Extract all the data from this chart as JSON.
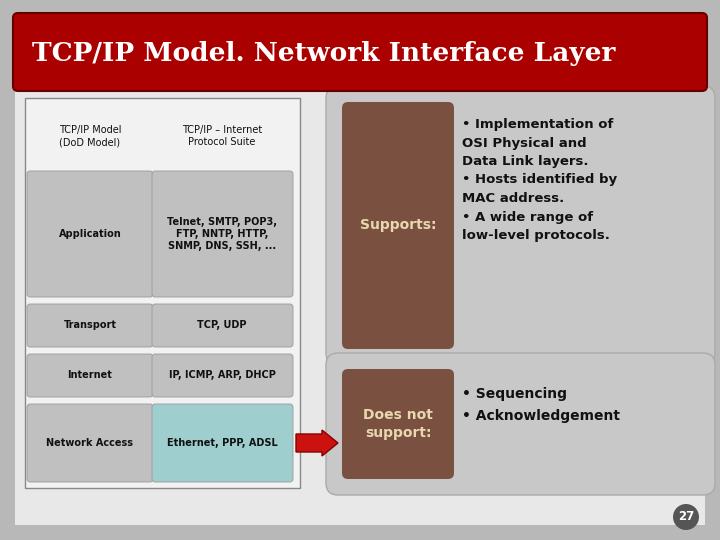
{
  "title": "TCP/IP Model. Network Interface Layer",
  "title_bg": "#aa0000",
  "title_color": "#ffffff",
  "slide_bg_outer": "#b8b8b8",
  "slide_bg_inner": "#e8e8e8",
  "table_headers": [
    "TCP/IP Model\n(DoD Model)",
    "TCP/IP – Internet\nProtocol Suite"
  ],
  "table_rows": [
    [
      "Application",
      "Telnet, SMTP, POP3,\nFTP, NNTP, HTTP,\nSNMP, DNS, SSH, ..."
    ],
    [
      "Transport",
      "TCP, UDP"
    ],
    [
      "Internet",
      "IP, ICMP, ARP, DHCP"
    ],
    [
      "Network Access",
      "Ethernet, PPP, ADSL"
    ]
  ],
  "highlight_row": 3,
  "highlight_color": "#9ecece",
  "normal_row_color": "#c0c0c0",
  "supports_box_color": "#7a5040",
  "supports_text_color": "#e8d8b0",
  "supports_label": "Supports:",
  "supports_bullets": [
    "Implementation of\nOSI Physical and\nData Link layers.",
    "Hosts identified by\nMAC address.",
    "A wide range of\nlow-level protocols."
  ],
  "doesnot_box_color": "#7a5040",
  "doesnot_text_color": "#e8d8b0",
  "doesnot_label": "Does not\nsupport:",
  "doesnot_bullets": [
    "Sequencing",
    "Acknowledgement"
  ],
  "panel_color": "#c8c8c8",
  "page_number": "27",
  "arrow_color": "#cc1111"
}
